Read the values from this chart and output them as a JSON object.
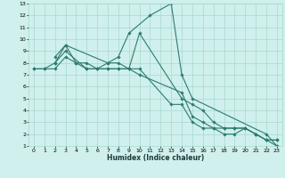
{
  "xlabel": "Humidex (Indice chaleur)",
  "xlim": [
    -0.5,
    23.5
  ],
  "ylim": [
    1,
    13
  ],
  "xticks": [
    0,
    1,
    2,
    3,
    4,
    5,
    6,
    7,
    8,
    9,
    10,
    11,
    12,
    13,
    14,
    15,
    16,
    17,
    18,
    19,
    20,
    21,
    22,
    23
  ],
  "yticks": [
    1,
    2,
    3,
    4,
    5,
    6,
    7,
    8,
    9,
    10,
    11,
    12,
    13
  ],
  "background_color": "#cff0ec",
  "grid_color": "#a8d8d0",
  "line_color": "#2e7b6e",
  "lines": [
    {
      "x": [
        0,
        1,
        2,
        3,
        4,
        5,
        6,
        7,
        8,
        9,
        10,
        14,
        15,
        16,
        17,
        18,
        19,
        20,
        21,
        22,
        23
      ],
      "y": [
        7.5,
        7.5,
        7.5,
        8.5,
        8,
        8,
        7.5,
        7.5,
        7.5,
        7.5,
        10.5,
        5,
        4.5,
        4,
        3,
        2.5,
        2.5,
        2.5,
        2,
        1.5,
        1.5
      ]
    },
    {
      "x": [
        0,
        1,
        2,
        3,
        4,
        5,
        6,
        7,
        8,
        9,
        10,
        14,
        15,
        16,
        17,
        18,
        19,
        20,
        21,
        22,
        23
      ],
      "y": [
        7.5,
        7.5,
        8,
        9.5,
        8,
        7.5,
        7.5,
        8,
        8,
        7.5,
        7,
        5.5,
        3.5,
        3,
        2.5,
        2.5,
        2.5,
        2.5,
        2,
        1.5,
        1.5
      ]
    },
    {
      "x": [
        2,
        3,
        7,
        8,
        9,
        11,
        13,
        14,
        15,
        22,
        23
      ],
      "y": [
        8.5,
        9.5,
        8,
        8.5,
        10.5,
        12,
        13,
        7,
        5,
        2,
        1
      ]
    },
    {
      "x": [
        2,
        3,
        5,
        6,
        7,
        8,
        9,
        10,
        13,
        14,
        15,
        16,
        17,
        18,
        19,
        20,
        21,
        22,
        23
      ],
      "y": [
        8,
        9,
        7.5,
        7.5,
        7.5,
        7.5,
        7.5,
        7.5,
        4.5,
        4.5,
        3,
        2.5,
        2.5,
        2,
        2,
        2.5,
        2,
        1.5,
        1
      ]
    }
  ]
}
